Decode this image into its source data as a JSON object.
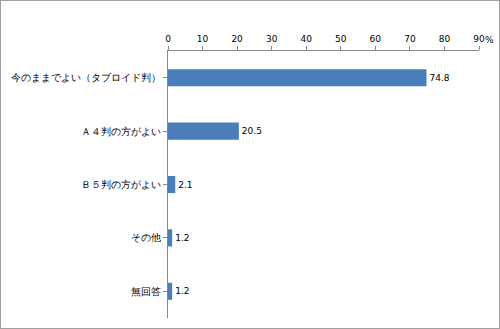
{
  "chart_data": {
    "type": "bar",
    "orientation": "horizontal",
    "categories": [
      "今のままでよい（タブロイド判）",
      "Ａ４判の方がよい",
      "Ｂ５判の方がよい",
      "その他",
      "無回答"
    ],
    "values": [
      74.8,
      20.5,
      2.1,
      1.2,
      1.2
    ],
    "color": "#4a7ebb",
    "xlabel": "%",
    "xlim": [
      0,
      90
    ],
    "xticks": [
      0,
      10,
      20,
      30,
      40,
      50,
      60,
      70,
      80,
      90
    ],
    "grid": false,
    "data_labels": true
  }
}
